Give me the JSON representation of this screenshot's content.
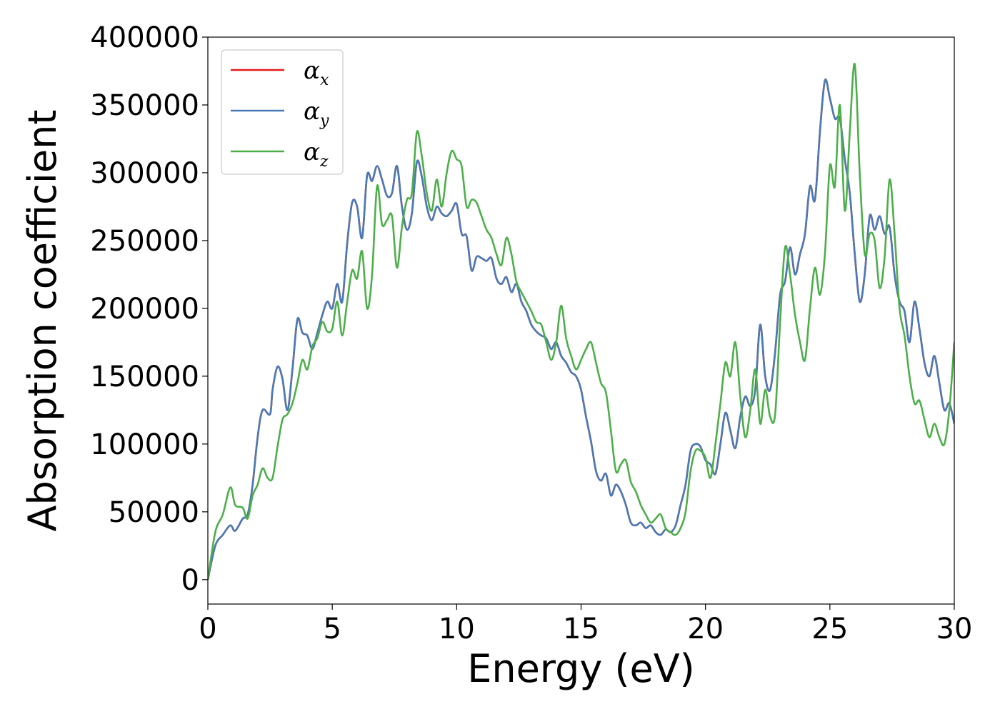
{
  "chart_data": {
    "type": "line",
    "xlabel": "Energy (eV)",
    "ylabel": "Absorption coefficient",
    "xlim": [
      0,
      30
    ],
    "ylim": [
      -18000,
      400000
    ],
    "xticks": [
      0,
      5,
      10,
      15,
      20,
      25,
      30
    ],
    "yticks": [
      0,
      50000,
      100000,
      150000,
      200000,
      250000,
      300000,
      350000,
      400000
    ],
    "grid": false,
    "legend_position": "top-left",
    "series": [
      {
        "name": "α",
        "subscript": "x",
        "color": "#e41a1c",
        "x": [
          0,
          0.3,
          0.6,
          0.9,
          1.1,
          1.4,
          1.6,
          1.8,
          2.0,
          2.2,
          2.5,
          2.6,
          2.8,
          3.0,
          3.2,
          3.4,
          3.6,
          3.8,
          4.0,
          4.2,
          4.4,
          4.6,
          4.8,
          5.0,
          5.2,
          5.4,
          5.6,
          5.8,
          6.0,
          6.2,
          6.4,
          6.6,
          6.8,
          7.0,
          7.2,
          7.4,
          7.6,
          7.8,
          8.0,
          8.2,
          8.4,
          8.6,
          8.8,
          9.0,
          9.2,
          9.4,
          9.6,
          9.8,
          10.0,
          10.2,
          10.4,
          10.6,
          10.8,
          11.0,
          11.2,
          11.4,
          11.6,
          11.8,
          12.0,
          12.2,
          12.4,
          12.6,
          12.8,
          13.0,
          13.2,
          13.4,
          13.6,
          13.8,
          14.0,
          14.2,
          14.4,
          14.6,
          14.8,
          15.0,
          15.2,
          15.4,
          15.6,
          15.8,
          16.0,
          16.2,
          16.4,
          16.6,
          16.8,
          17.0,
          17.2,
          17.4,
          17.6,
          17.8,
          18.0,
          18.2,
          18.4,
          18.6,
          18.8,
          19.0,
          19.2,
          19.4,
          19.6,
          19.8,
          20.0,
          20.2,
          20.4,
          20.6,
          20.8,
          21.0,
          21.2,
          21.4,
          21.6,
          21.8,
          22.0,
          22.2,
          22.4,
          22.6,
          22.8,
          23.0,
          23.2,
          23.4,
          23.6,
          23.8,
          24.0,
          24.2,
          24.4,
          24.6,
          24.8,
          25.0,
          25.2,
          25.4,
          25.6,
          25.8,
          26.0,
          26.2,
          26.4,
          26.6,
          26.8,
          27.0,
          27.2,
          27.4,
          27.6,
          27.8,
          28.0,
          28.2,
          28.4,
          28.6,
          28.8,
          29.0,
          29.2,
          29.4,
          29.6,
          29.8,
          30.0
        ],
        "y": [
          0,
          25000,
          33000,
          40000,
          36000,
          45000,
          48000,
          70000,
          105000,
          125000,
          122000,
          140000,
          157000,
          148000,
          125000,
          155000,
          192000,
          182000,
          180000,
          170000,
          182000,
          195000,
          205000,
          200000,
          218000,
          205000,
          248000,
          278000,
          275000,
          252000,
          298000,
          294000,
          305000,
          295000,
          283000,
          285000,
          305000,
          275000,
          258000,
          270000,
          308000,
          297000,
          275000,
          265000,
          275000,
          270000,
          268000,
          272000,
          277000,
          255000,
          253000,
          228000,
          238000,
          237000,
          235000,
          237000,
          222000,
          218000,
          223000,
          212000,
          218000,
          205000,
          198000,
          188000,
          183000,
          180000,
          178000,
          170000,
          175000,
          165000,
          160000,
          153000,
          150000,
          140000,
          120000,
          102000,
          80000,
          73000,
          78000,
          62000,
          70000,
          65000,
          55000,
          42000,
          40000,
          42000,
          38000,
          40000,
          35000,
          33000,
          37000,
          35000,
          40000,
          55000,
          70000,
          95000,
          100000,
          98000,
          88000,
          85000,
          78000,
          100000,
          123000,
          110000,
          97000,
          120000,
          135000,
          128000,
          140000,
          188000,
          150000,
          140000,
          168000,
          210000,
          220000,
          245000,
          225000,
          240000,
          255000,
          290000,
          280000,
          330000,
          368000,
          355000,
          340000,
          340000,
          310000,
          285000,
          240000,
          205000,
          225000,
          268000,
          258000,
          268000,
          255000,
          260000,
          225000,
          205000,
          198000,
          175000,
          205000,
          185000,
          160000,
          150000,
          165000,
          145000,
          125000,
          130000,
          115000
        ]
      },
      {
        "name": "α",
        "subscript": "y",
        "color": "#4a7bb7",
        "x": [
          0,
          0.3,
          0.6,
          0.9,
          1.1,
          1.4,
          1.6,
          1.8,
          2.0,
          2.2,
          2.5,
          2.6,
          2.8,
          3.0,
          3.2,
          3.4,
          3.6,
          3.8,
          4.0,
          4.2,
          4.4,
          4.6,
          4.8,
          5.0,
          5.2,
          5.4,
          5.6,
          5.8,
          6.0,
          6.2,
          6.4,
          6.6,
          6.8,
          7.0,
          7.2,
          7.4,
          7.6,
          7.8,
          8.0,
          8.2,
          8.4,
          8.6,
          8.8,
          9.0,
          9.2,
          9.4,
          9.6,
          9.8,
          10.0,
          10.2,
          10.4,
          10.6,
          10.8,
          11.0,
          11.2,
          11.4,
          11.6,
          11.8,
          12.0,
          12.2,
          12.4,
          12.6,
          12.8,
          13.0,
          13.2,
          13.4,
          13.6,
          13.8,
          14.0,
          14.2,
          14.4,
          14.6,
          14.8,
          15.0,
          15.2,
          15.4,
          15.6,
          15.8,
          16.0,
          16.2,
          16.4,
          16.6,
          16.8,
          17.0,
          17.2,
          17.4,
          17.6,
          17.8,
          18.0,
          18.2,
          18.4,
          18.6,
          18.8,
          19.0,
          19.2,
          19.4,
          19.6,
          19.8,
          20.0,
          20.2,
          20.4,
          20.6,
          20.8,
          21.0,
          21.2,
          21.4,
          21.6,
          21.8,
          22.0,
          22.2,
          22.4,
          22.6,
          22.8,
          23.0,
          23.2,
          23.4,
          23.6,
          23.8,
          24.0,
          24.2,
          24.4,
          24.6,
          24.8,
          25.0,
          25.2,
          25.4,
          25.6,
          25.8,
          26.0,
          26.2,
          26.4,
          26.6,
          26.8,
          27.0,
          27.2,
          27.4,
          27.6,
          27.8,
          28.0,
          28.2,
          28.4,
          28.6,
          28.8,
          29.0,
          29.2,
          29.4,
          29.6,
          29.8,
          30.0
        ],
        "y": [
          0,
          25000,
          33000,
          40000,
          36000,
          45000,
          48000,
          70000,
          105000,
          125000,
          122000,
          140000,
          157000,
          148000,
          125000,
          155000,
          192000,
          182000,
          180000,
          170000,
          182000,
          195000,
          205000,
          200000,
          218000,
          205000,
          248000,
          278000,
          275000,
          252000,
          298000,
          294000,
          305000,
          295000,
          283000,
          285000,
          305000,
          275000,
          258000,
          270000,
          308000,
          297000,
          275000,
          265000,
          275000,
          270000,
          268000,
          272000,
          277000,
          255000,
          253000,
          228000,
          238000,
          237000,
          235000,
          237000,
          222000,
          218000,
          223000,
          212000,
          218000,
          205000,
          198000,
          188000,
          183000,
          180000,
          178000,
          170000,
          175000,
          165000,
          160000,
          153000,
          150000,
          140000,
          120000,
          102000,
          80000,
          73000,
          78000,
          62000,
          70000,
          65000,
          55000,
          42000,
          40000,
          42000,
          38000,
          40000,
          35000,
          33000,
          37000,
          35000,
          40000,
          55000,
          70000,
          95000,
          100000,
          98000,
          88000,
          85000,
          78000,
          100000,
          123000,
          110000,
          97000,
          120000,
          135000,
          128000,
          140000,
          188000,
          150000,
          140000,
          168000,
          210000,
          220000,
          245000,
          225000,
          240000,
          255000,
          290000,
          280000,
          330000,
          368000,
          355000,
          340000,
          340000,
          310000,
          285000,
          240000,
          205000,
          225000,
          268000,
          258000,
          268000,
          255000,
          260000,
          225000,
          205000,
          198000,
          175000,
          205000,
          185000,
          160000,
          150000,
          165000,
          145000,
          125000,
          130000,
          115000
        ]
      },
      {
        "name": "α",
        "subscript": "z",
        "color": "#4daf4a",
        "x": [
          0,
          0.3,
          0.6,
          0.9,
          1.1,
          1.4,
          1.6,
          1.8,
          2.0,
          2.2,
          2.4,
          2.6,
          2.8,
          3.0,
          3.2,
          3.4,
          3.6,
          3.8,
          4.0,
          4.2,
          4.4,
          4.6,
          4.8,
          5.0,
          5.2,
          5.4,
          5.6,
          5.8,
          6.0,
          6.2,
          6.4,
          6.6,
          6.8,
          7.0,
          7.2,
          7.4,
          7.6,
          7.8,
          8.0,
          8.2,
          8.4,
          8.6,
          8.8,
          9.0,
          9.2,
          9.4,
          9.6,
          9.8,
          10.0,
          10.2,
          10.4,
          10.6,
          10.8,
          11.0,
          11.2,
          11.4,
          11.6,
          11.8,
          12.0,
          12.2,
          12.4,
          12.6,
          12.8,
          13.0,
          13.2,
          13.4,
          13.6,
          13.8,
          14.0,
          14.2,
          14.4,
          14.6,
          14.8,
          15.0,
          15.2,
          15.4,
          15.6,
          15.8,
          16.0,
          16.2,
          16.4,
          16.6,
          16.8,
          17.0,
          17.2,
          17.4,
          17.6,
          17.8,
          18.0,
          18.2,
          18.4,
          18.6,
          18.8,
          19.0,
          19.2,
          19.4,
          19.6,
          19.8,
          20.0,
          20.2,
          20.4,
          20.6,
          20.8,
          21.0,
          21.2,
          21.4,
          21.6,
          21.8,
          22.0,
          22.2,
          22.4,
          22.6,
          22.8,
          23.0,
          23.2,
          23.4,
          23.6,
          23.8,
          24.0,
          24.2,
          24.4,
          24.6,
          24.8,
          25.0,
          25.2,
          25.4,
          25.6,
          25.8,
          26.0,
          26.2,
          26.4,
          26.6,
          26.8,
          27.0,
          27.2,
          27.4,
          27.6,
          27.8,
          28.0,
          28.2,
          28.4,
          28.6,
          28.8,
          29.0,
          29.2,
          29.4,
          29.6,
          29.8,
          30.0
        ],
        "y": [
          0,
          35000,
          48000,
          68000,
          55000,
          53000,
          45000,
          62000,
          70000,
          82000,
          75000,
          75000,
          98000,
          118000,
          122000,
          130000,
          145000,
          162000,
          155000,
          172000,
          178000,
          190000,
          183000,
          185000,
          205000,
          180000,
          205000,
          228000,
          222000,
          242000,
          200000,
          225000,
          290000,
          262000,
          265000,
          268000,
          230000,
          260000,
          280000,
          285000,
          330000,
          312000,
          285000,
          272000,
          295000,
          275000,
          300000,
          316000,
          310000,
          305000,
          275000,
          280000,
          278000,
          268000,
          258000,
          252000,
          240000,
          232000,
          252000,
          240000,
          220000,
          212000,
          205000,
          198000,
          190000,
          188000,
          175000,
          162000,
          175000,
          202000,
          178000,
          165000,
          155000,
          162000,
          170000,
          175000,
          160000,
          145000,
          138000,
          110000,
          80000,
          85000,
          88000,
          72000,
          65000,
          55000,
          48000,
          42000,
          45000,
          48000,
          38000,
          35000,
          33000,
          38000,
          50000,
          80000,
          95000,
          95000,
          90000,
          75000,
          100000,
          130000,
          160000,
          150000,
          175000,
          135000,
          105000,
          125000,
          155000,
          115000,
          140000,
          120000,
          122000,
          190000,
          245000,
          225000,
          195000,
          175000,
          162000,
          200000,
          230000,
          210000,
          240000,
          305000,
          290000,
          350000,
          272000,
          330000,
          380000,
          300000,
          240000,
          255000,
          250000,
          215000,
          238000,
          295000,
          255000,
          200000,
          180000,
          150000,
          130000,
          132000,
          118000,
          105000,
          115000,
          105000,
          100000,
          125000,
          175000
        ]
      }
    ]
  }
}
